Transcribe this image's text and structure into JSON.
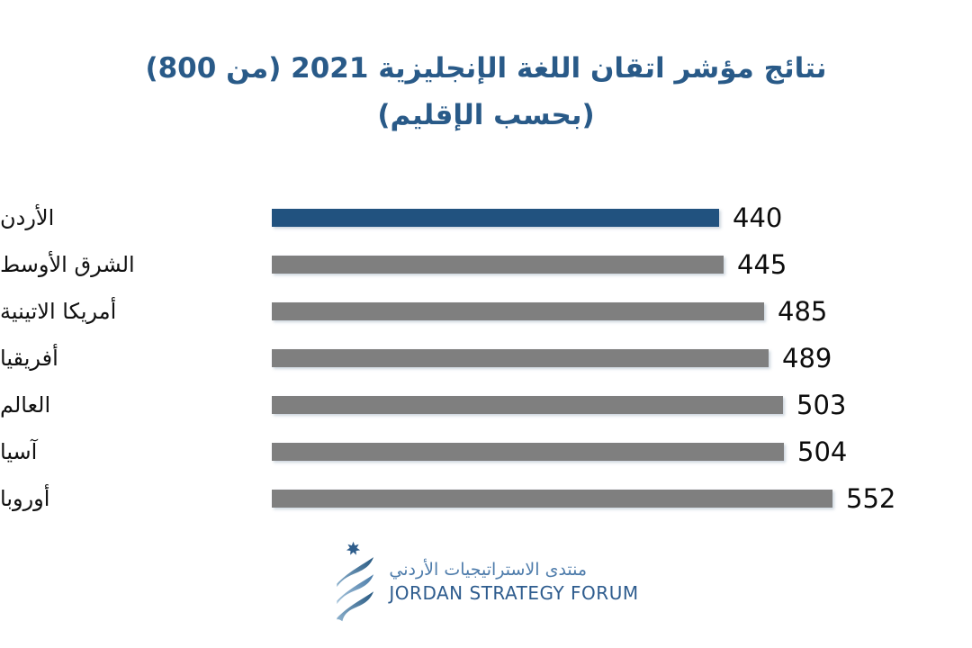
{
  "page": {
    "background": "#FFFFFF"
  },
  "title": {
    "line1": "نتائج مؤشر اتقان اللغة الإنجليزية 2021 (من 800)",
    "line2": "(بحسب الإقليم)",
    "color": "#295A88"
  },
  "chart_data": {
    "type": "bar",
    "orientation": "horizontal",
    "title": "نتائج مؤشر اتقان اللغة الإنجليزية 2021 (من 800) (بحسب الإقليم)",
    "categories": [
      "الأردن",
      "الشرق الأوسط",
      "أمريكا الاتينية",
      "أفريقيا",
      "العالم",
      "آسيا",
      "أوروبا"
    ],
    "values": [
      440,
      445,
      485,
      489,
      503,
      504,
      552
    ],
    "highlight_index": 0,
    "highlight_color": "#21527F",
    "bar_color": "#7F7F7F",
    "xlim": [
      0,
      560
    ],
    "grid": false,
    "legend": false,
    "data_labels": "end-of-bar"
  },
  "logo": {
    "arabic": "منتدى الاستراتيجيات الأردني",
    "english": "JORDAN STRATEGY FORUM",
    "mark": "jsf-ribbon-star",
    "arabic_color": "#4E7CAB",
    "english_color": "#2E5C8E",
    "mark_dark": "#2F5E8C",
    "mark_light": "#A9C6DC"
  }
}
